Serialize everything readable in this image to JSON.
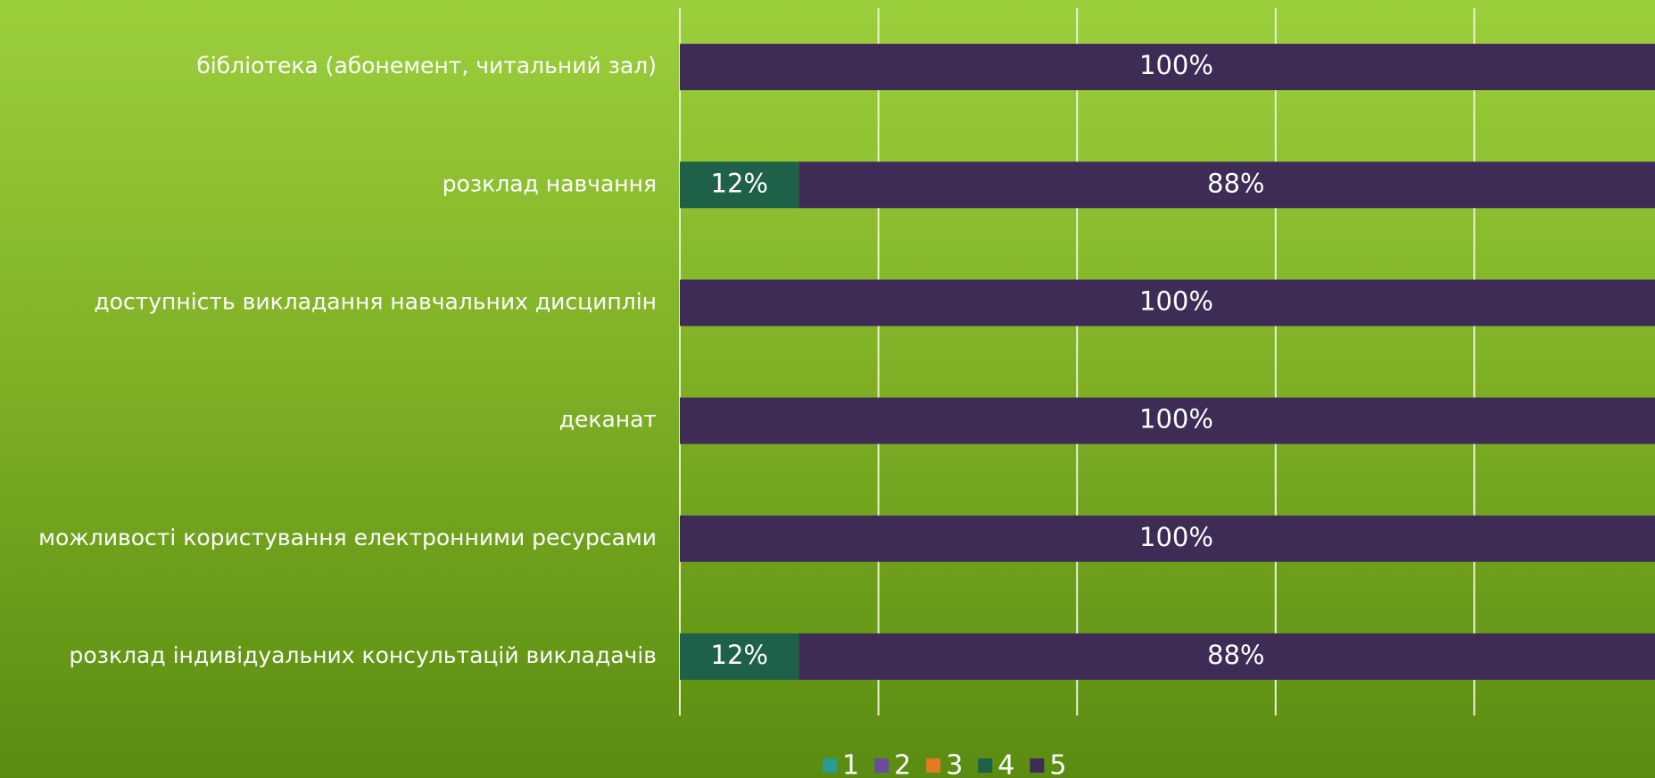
{
  "chart_data": {
    "type": "stacked-bar-horizontal",
    "categories": [
      "бібліотека (абонемент, читальний зал)",
      "розклад навчання",
      "доступність викладання навчальних дисциплін",
      "деканат",
      "можливості користування електронними ресурсами",
      "розклад індивідуальних консультацій викладачів"
    ],
    "series": [
      {
        "name": "1",
        "color": "#2a9d8f",
        "values": [
          0,
          0,
          0,
          0,
          0,
          0
        ]
      },
      {
        "name": "2",
        "color": "#6b4c9a",
        "values": [
          0,
          0,
          0,
          0,
          0,
          0
        ]
      },
      {
        "name": "3",
        "color": "#e07b22",
        "values": [
          0,
          0,
          0,
          0,
          0,
          0
        ]
      },
      {
        "name": "4",
        "color": "#1e6148",
        "values": [
          0,
          12,
          0,
          0,
          0,
          12
        ],
        "value_labels": [
          null,
          "12%",
          null,
          null,
          null,
          "12%"
        ]
      },
      {
        "name": "5",
        "color": "#3e2c56",
        "values": [
          100,
          88,
          100,
          100,
          100,
          88
        ],
        "value_labels": [
          "100%",
          "88%",
          "100%",
          "100%",
          "100%",
          "88%"
        ]
      }
    ],
    "xlim": [
      0,
      100
    ],
    "xticks": [
      0,
      20,
      40,
      60,
      80,
      100
    ],
    "grid": true,
    "legend": "bottom"
  }
}
